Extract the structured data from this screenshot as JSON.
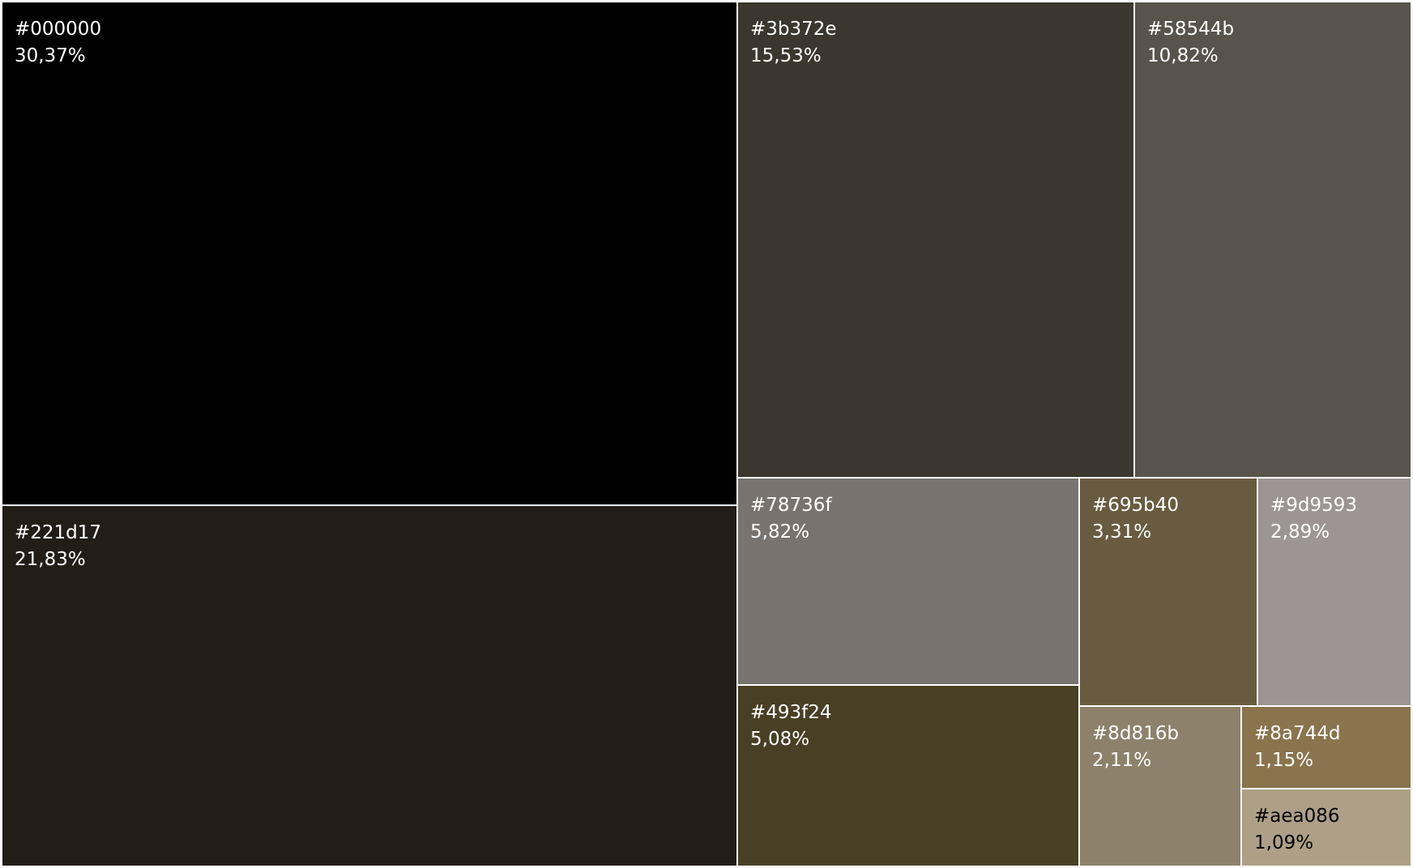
{
  "chart_data": {
    "type": "treemap",
    "title": "",
    "items": [
      {
        "label": "#000000",
        "value": 30.37,
        "value_label": "30,37%",
        "color": "#000000",
        "text_color": "#ffffff"
      },
      {
        "label": "#221d17",
        "value": 21.83,
        "value_label": "21,83%",
        "color": "#221d17",
        "text_color": "#ffffff"
      },
      {
        "label": "#3b372e",
        "value": 15.53,
        "value_label": "15,53%",
        "color": "#3b372e",
        "text_color": "#ffffff"
      },
      {
        "label": "#58544b",
        "value": 10.82,
        "value_label": "10,82%",
        "color": "#58544b",
        "text_color": "#ffffff"
      },
      {
        "label": "#78736f",
        "value": 5.82,
        "value_label": "5,82%",
        "color": "#78736f",
        "text_color": "#ffffff"
      },
      {
        "label": "#493f24",
        "value": 5.08,
        "value_label": "5,08%",
        "color": "#493f24",
        "text_color": "#ffffff"
      },
      {
        "label": "#695b40",
        "value": 3.31,
        "value_label": "3,31%",
        "color": "#695b40",
        "text_color": "#ffffff"
      },
      {
        "label": "#9d9593",
        "value": 2.89,
        "value_label": "2,89%",
        "color": "#9d9593",
        "text_color": "#ffffff"
      },
      {
        "label": "#8d816b",
        "value": 2.11,
        "value_label": "2,11%",
        "color": "#8d816b",
        "text_color": "#ffffff"
      },
      {
        "label": "#8a744d",
        "value": 1.15,
        "value_label": "1,15%",
        "color": "#8a744d",
        "text_color": "#ffffff"
      },
      {
        "label": "#aea086",
        "value": 1.09,
        "value_label": "1,09%",
        "color": "#aea086",
        "text_color": "#000000"
      }
    ]
  }
}
